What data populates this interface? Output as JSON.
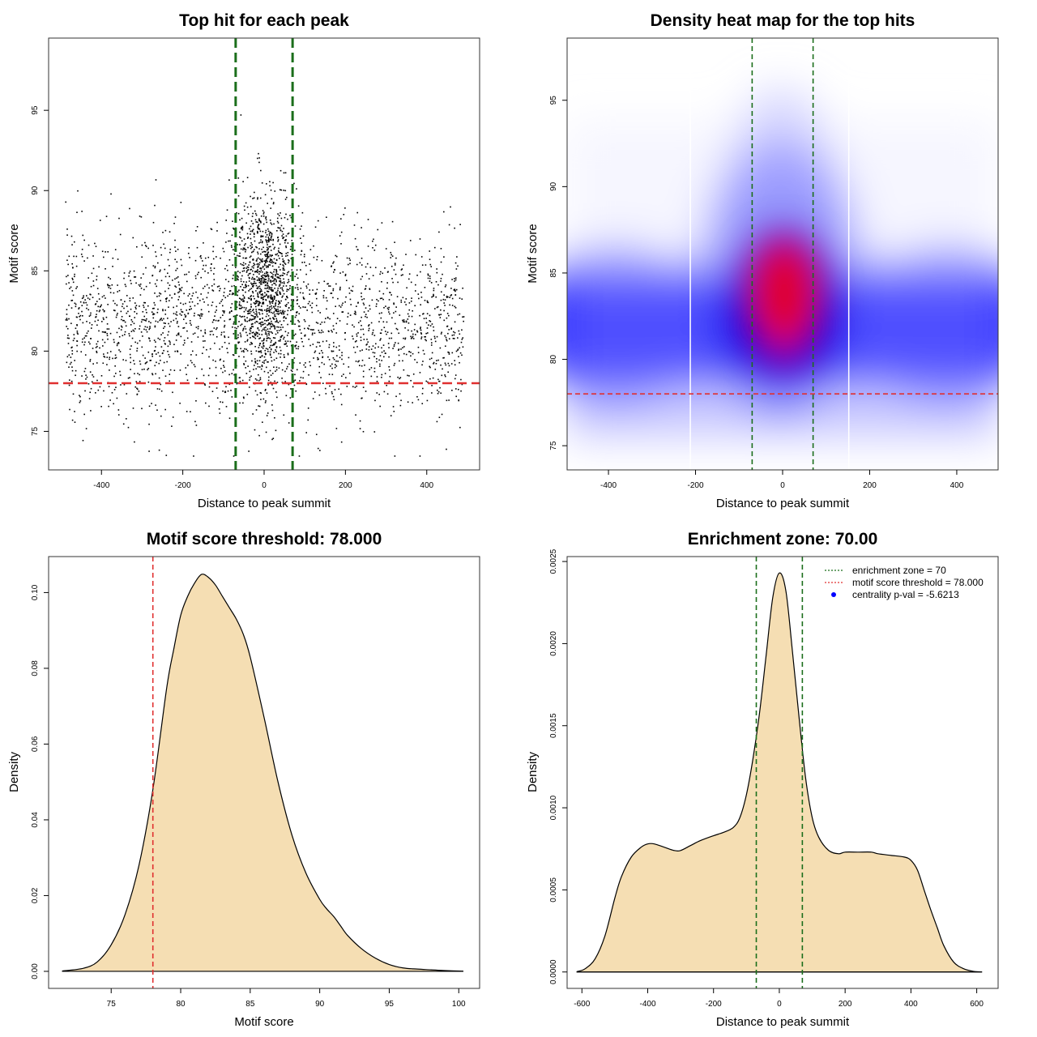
{
  "chart_data": [
    {
      "id": "scatter",
      "type": "scatter",
      "title": "Top hit for each peak",
      "xlabel": "Distance to peak summit",
      "ylabel": "Motif score",
      "xlim": [
        -530,
        530
      ],
      "ylim": [
        72.6,
        99.5
      ],
      "xticks": [
        -400,
        -200,
        0,
        200,
        400
      ],
      "yticks": [
        75,
        80,
        85,
        90,
        95
      ],
      "hline": {
        "value": 78,
        "color": "#e03030",
        "style": "dashed"
      },
      "vlines": [
        {
          "value": -70,
          "color": "#1b6e1b"
        },
        {
          "value": 70,
          "color": "#1b6e1b"
        }
      ],
      "point_color": "#000000",
      "n_points_approx": 3200,
      "distribution": {
        "x_range": [
          -490,
          490
        ],
        "score_range": [
          73.5,
          98.5
        ],
        "background_mean": 81.7,
        "background_sd": 2.8,
        "center_mean": 84.2,
        "center_sd": 3.0,
        "center_sd_x": 38,
        "center_fraction": 0.32
      }
    },
    {
      "id": "heatmap",
      "type": "heatmap",
      "title": "Density heat map for the top hits",
      "xlabel": "Distance to peak summit",
      "ylabel": "Motif score",
      "xlim": [
        -495,
        495
      ],
      "ylim": [
        73.6,
        98.6
      ],
      "xticks": [
        -400,
        -200,
        0,
        200,
        400
      ],
      "yticks": [
        75,
        80,
        85,
        90,
        95
      ],
      "hline": {
        "value": 78,
        "color": "#e03030",
        "style": "dashed"
      },
      "vlines": [
        {
          "value": -70,
          "color": "#1b6e1b"
        },
        {
          "value": 70,
          "color": "#1b6e1b"
        }
      ],
      "white_lines": [
        -212,
        152
      ],
      "colors": {
        "low": "#ffffff",
        "mid": "#0000ff",
        "high": "#ff0000"
      },
      "hotspot": {
        "x": 5,
        "y": 84.3
      }
    },
    {
      "id": "density-score",
      "type": "area",
      "title": "Motif score threshold: 78.000",
      "xlabel": "Motif score",
      "ylabel": "Density",
      "xlim": [
        70.5,
        101.5
      ],
      "ylim": [
        -0.0045,
        0.1095
      ],
      "xticks": [
        75,
        80,
        85,
        90,
        95,
        100
      ],
      "yticks": [
        0.0,
        0.02,
        0.04,
        0.06,
        0.08,
        0.1
      ],
      "ytick_labels": [
        "0.00",
        "0.02",
        "0.04",
        "0.06",
        "0.08",
        "0.10"
      ],
      "fill": "#f5deb3",
      "vline": {
        "value": 78,
        "color": "#e03030"
      },
      "x": [
        71.5,
        73,
        74,
        75,
        76,
        77,
        78,
        79,
        79.5,
        80,
        80.5,
        81,
        81.5,
        82,
        82.5,
        83,
        83.5,
        84,
        84.5,
        85,
        86,
        87,
        88,
        89,
        90,
        90.5,
        91,
        91.5,
        92,
        93,
        94,
        95,
        96,
        97,
        98,
        99,
        100.3
      ],
      "y": [
        0.0001,
        0.0008,
        0.0025,
        0.007,
        0.015,
        0.028,
        0.048,
        0.075,
        0.085,
        0.094,
        0.099,
        0.1025,
        0.1048,
        0.104,
        0.102,
        0.099,
        0.096,
        0.093,
        0.089,
        0.083,
        0.067,
        0.05,
        0.036,
        0.026,
        0.019,
        0.0165,
        0.0145,
        0.012,
        0.0095,
        0.006,
        0.0035,
        0.0018,
        0.0009,
        0.0006,
        0.0004,
        0.0002,
        5e-05
      ]
    },
    {
      "id": "density-distance",
      "type": "area",
      "title": "Enrichment zone: 70.00",
      "xlabel": "Distance to peak summit",
      "ylabel": "Density",
      "xlim": [
        -645,
        665
      ],
      "ylim": [
        -0.0001,
        0.00253
      ],
      "xticks": [
        -600,
        -400,
        -200,
        0,
        200,
        400,
        600
      ],
      "yticks": [
        0,
        0.0005,
        0.001,
        0.0015,
        0.002,
        0.0025
      ],
      "ytick_labels": [
        "0.0000",
        "0.0005",
        "0.0010",
        "0.0015",
        "0.0020",
        "0.0025"
      ],
      "fill": "#f5deb3",
      "vlines": [
        {
          "value": -70,
          "color": "#1b6e1b"
        },
        {
          "value": 70,
          "color": "#1b6e1b"
        }
      ],
      "x": [
        -615,
        -590,
        -560,
        -530,
        -500,
        -480,
        -450,
        -420,
        -400,
        -380,
        -350,
        -320,
        -300,
        -270,
        -240,
        -200,
        -170,
        -140,
        -120,
        -100,
        -80,
        -60,
        -40,
        -20,
        0,
        20,
        40,
        60,
        80,
        100,
        120,
        150,
        180,
        200,
        240,
        280,
        300,
        340,
        380,
        400,
        420,
        440,
        460,
        480,
        500,
        530,
        560,
        590,
        615
      ],
      "y": [
        2e-06,
        2e-05,
        8e-05,
        0.00022,
        0.00045,
        0.00058,
        0.0007,
        0.00076,
        0.00078,
        0.00078,
        0.00076,
        0.00074,
        0.00074,
        0.00077,
        0.0008,
        0.00083,
        0.00085,
        0.00088,
        0.00094,
        0.00108,
        0.0013,
        0.00158,
        0.00193,
        0.00228,
        0.00243,
        0.00232,
        0.00195,
        0.00155,
        0.00118,
        0.00094,
        0.00082,
        0.00074,
        0.00072,
        0.00073,
        0.00073,
        0.00073,
        0.00072,
        0.00071,
        0.0007,
        0.00068,
        0.00062,
        0.0005,
        0.00038,
        0.00027,
        0.00016,
        6e-05,
        2e-05,
        4e-06,
        5e-07
      ],
      "legend": {
        "position": "top-right",
        "entries": [
          {
            "label": "enrichment zone = 70",
            "color": "#1b6e1b",
            "symbol": "dotted-line"
          },
          {
            "label": "motif score threshold = 78.000",
            "color": "#e03030",
            "symbol": "dotted-line"
          },
          {
            "label": "centrality p-val = -5.6213",
            "color": "#0000ff",
            "symbol": "point"
          }
        ]
      }
    }
  ]
}
